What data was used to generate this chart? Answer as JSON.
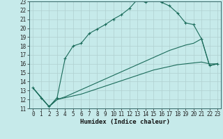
{
  "xlabel": "Humidex (Indice chaleur)",
  "bg_color": "#c6eaea",
  "grid_color": "#b0d0d0",
  "line_color": "#1a6b5a",
  "xlim_min": -0.5,
  "xlim_max": 23.4,
  "ylim_min": 11,
  "ylim_max": 23,
  "xticks": [
    0,
    1,
    2,
    3,
    4,
    5,
    6,
    7,
    8,
    9,
    10,
    11,
    12,
    13,
    14,
    15,
    16,
    17,
    18,
    19,
    20,
    21,
    22,
    23
  ],
  "yticks": [
    11,
    12,
    13,
    14,
    15,
    16,
    17,
    18,
    19,
    20,
    21,
    22,
    23
  ],
  "line1_x": [
    0,
    1,
    2,
    3,
    4,
    5,
    6,
    7,
    8,
    9,
    10,
    11,
    12,
    13,
    14,
    15,
    16,
    17,
    18,
    19,
    20,
    21,
    22,
    23
  ],
  "line1_y": [
    13.3,
    12.2,
    11.2,
    12.2,
    16.6,
    18.0,
    18.3,
    19.4,
    19.9,
    20.4,
    21.0,
    21.5,
    22.2,
    23.2,
    22.9,
    23.4,
    22.9,
    22.5,
    21.7,
    20.6,
    20.4,
    18.8,
    15.8,
    16.0
  ],
  "line2_x": [
    0,
    2,
    3,
    4,
    5,
    6,
    7,
    8,
    9,
    10,
    11,
    12,
    13,
    14,
    15,
    16,
    17,
    18,
    19,
    20,
    21,
    22,
    23
  ],
  "line2_y": [
    13.3,
    11.2,
    12.0,
    12.2,
    12.4,
    12.6,
    12.9,
    13.2,
    13.5,
    13.8,
    14.1,
    14.4,
    14.7,
    15.0,
    15.3,
    15.5,
    15.7,
    15.9,
    16.0,
    16.1,
    16.2,
    16.0,
    16.0
  ],
  "line3_x": [
    0,
    2,
    3,
    4,
    5,
    6,
    7,
    8,
    9,
    10,
    11,
    12,
    13,
    14,
    15,
    16,
    17,
    18,
    19,
    20,
    21,
    22,
    23
  ],
  "line3_y": [
    13.3,
    11.2,
    12.0,
    12.3,
    12.7,
    13.1,
    13.5,
    13.9,
    14.3,
    14.7,
    15.1,
    15.5,
    15.9,
    16.3,
    16.7,
    17.1,
    17.5,
    17.8,
    18.1,
    18.3,
    18.8,
    15.8,
    16.0
  ]
}
